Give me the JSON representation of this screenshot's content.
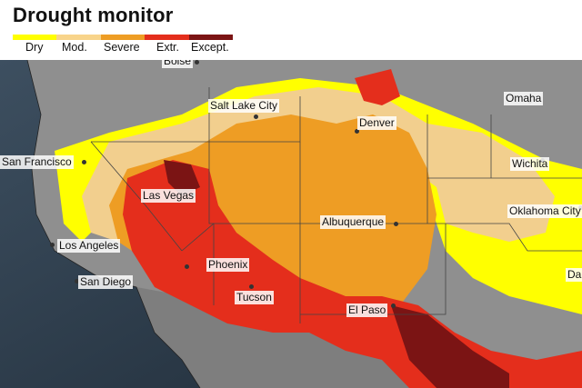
{
  "title": "Drought monitor",
  "legend": [
    {
      "label": "Dry",
      "color": "#ffff00"
    },
    {
      "label": "Mod.",
      "color": "#f8d48a"
    },
    {
      "label": "Severe",
      "color": "#ee9d24"
    },
    {
      "label": "Extr.",
      "color": "#e42e1c"
    },
    {
      "label": "Except.",
      "color": "#7b1414"
    }
  ],
  "colors": {
    "ocean": "#2a3a4a",
    "land": "#8c8c8c",
    "dry": "#ffff00",
    "moderate": "#f8d48a",
    "severe": "#ee9d24",
    "extreme": "#e42e1c",
    "exceptional": "#7b1414"
  },
  "cities": {
    "boise": "Boise",
    "salt_lake_city": "Salt Lake City",
    "denver": "Denver",
    "omaha": "Omaha",
    "san_francisco": "San Francisco",
    "wichita": "Wichita",
    "las_vegas": "Las Vegas",
    "oklahoma_city": "Oklahoma City",
    "los_angeles": "Los Angeles",
    "albuquerque": "Albuquerque",
    "phoenix": "Phoenix",
    "san_diego": "San Diego",
    "tucson": "Tucson",
    "el_paso": "El Paso",
    "dallas_partial": "Da"
  }
}
